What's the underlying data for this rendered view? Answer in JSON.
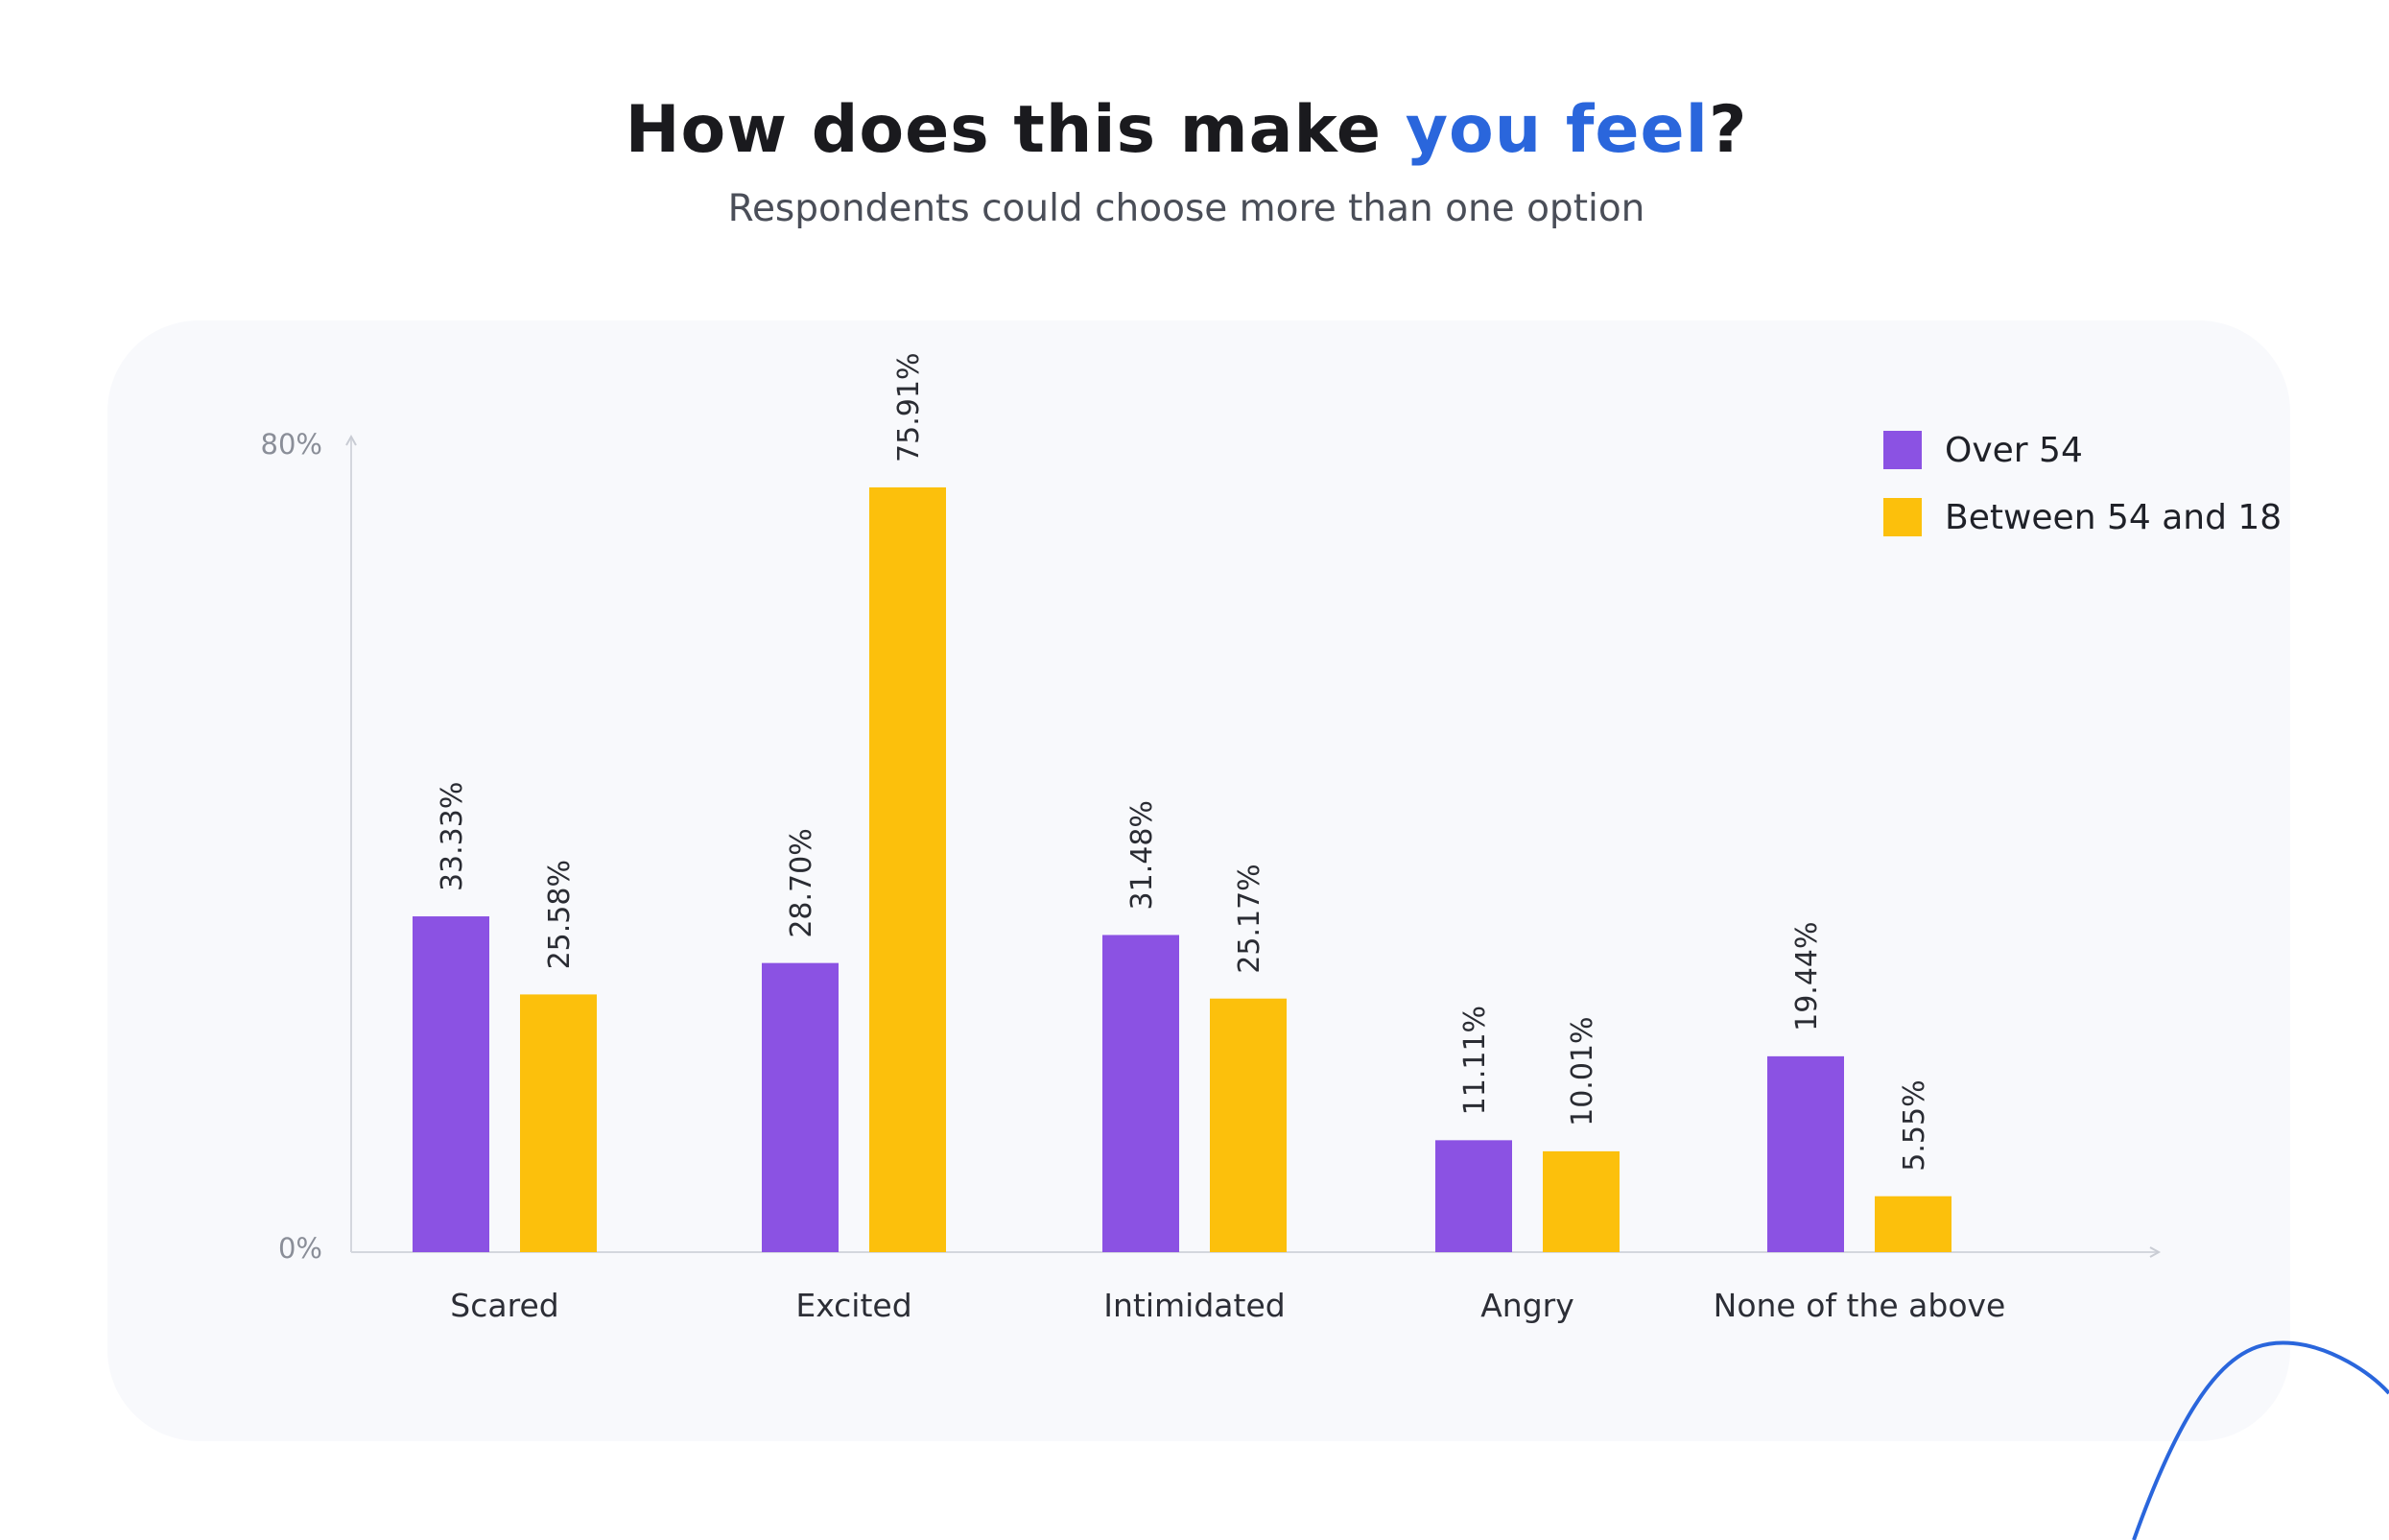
{
  "header": {
    "title_part1": "How does this make ",
    "title_accent": "you feel",
    "title_part2": "?",
    "subtitle": "Respondents could choose more than one option"
  },
  "colors": {
    "accent": "#2a66dc",
    "over54": "#8b52e3",
    "between": "#fcc00c",
    "card": "#f8f9fc"
  },
  "legend": [
    {
      "label": "Over 54",
      "color": "#8b52e3"
    },
    {
      "label": "Between 54 and 18",
      "color": "#fcc00c"
    }
  ],
  "chart_data": {
    "type": "bar",
    "title": "How does this make you feel?",
    "subtitle": "Respondents could choose more than one option",
    "categories": [
      "Scared",
      "Excited",
      "Intimidated",
      "Angry",
      "None of the above"
    ],
    "series": [
      {
        "name": "Over 54",
        "values": [
          33.33,
          28.7,
          31.48,
          11.11,
          19.44
        ],
        "labels": [
          "33.33%",
          "28.70%",
          "31.48%",
          "11.11%",
          "19.44%"
        ]
      },
      {
        "name": "Between 54 and 18",
        "values": [
          25.58,
          75.91,
          25.17,
          10.01,
          5.55
        ],
        "labels": [
          "25.58%",
          "75.91%",
          "25.17%",
          "10.01%",
          "5.55%"
        ]
      }
    ],
    "ylim": [
      0,
      80
    ],
    "yticks": [
      "0%",
      "80%"
    ],
    "xlabel": "",
    "ylabel": "",
    "grid": false,
    "legend_position": "top-right"
  }
}
